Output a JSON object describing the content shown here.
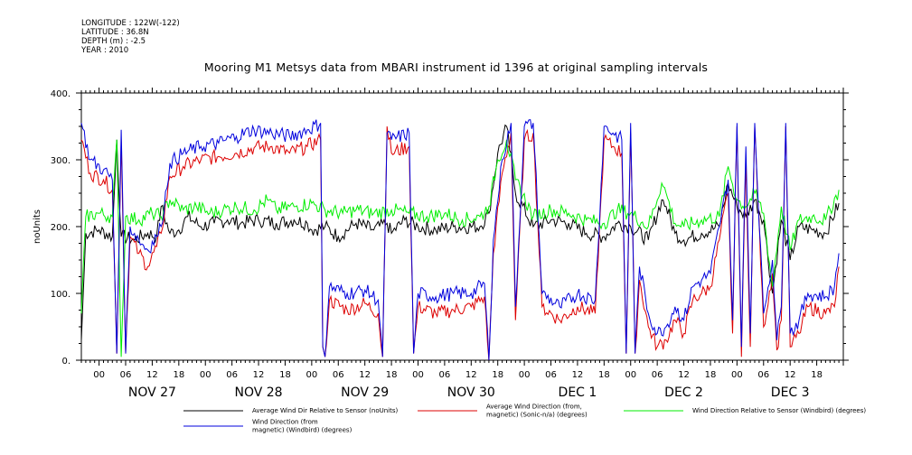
{
  "header": {
    "longitude": "LONGITUDE : 122W(-122)",
    "latitude": "LATITUDE : 36.8N",
    "depth": "DEPTH (m) : -2.5",
    "year": "YEAR : 2010"
  },
  "chart_data": {
    "type": "line",
    "title": "Mooring M1 Metsys data from MBARI instrument id 1396 at original sampling intervals",
    "ylabel": "noUnits",
    "ylim": [
      0,
      400
    ],
    "yticks": [
      0,
      100,
      200,
      300,
      400
    ],
    "ytick_labels": [
      "0.",
      "100.",
      "200.",
      "300.",
      "400."
    ],
    "xlim_hours": [
      0,
      172
    ],
    "hour_labels": [
      "00",
      "06",
      "12",
      "18",
      "00",
      "06",
      "12",
      "18",
      "00",
      "06",
      "12",
      "18",
      "00",
      "06",
      "12",
      "18",
      "00",
      "06",
      "12",
      "18",
      "00",
      "06",
      "12",
      "18",
      "00",
      "06",
      "12",
      "18"
    ],
    "day_labels": [
      "NOV 27",
      "NOV 28",
      "NOV 29",
      "NOV 30",
      "DEC  1",
      "DEC  2",
      "DEC  3"
    ],
    "grid": false,
    "legend_position": "bottom",
    "series": [
      {
        "name": "Average Wind Dir Relative to Sensor (noUnits)",
        "color": "#000000",
        "values": [
          [
            0,
            30
          ],
          [
            1,
            190
          ],
          [
            4,
            195
          ],
          [
            7,
            185
          ],
          [
            8,
            330
          ],
          [
            9,
            185
          ],
          [
            12,
            180
          ],
          [
            15,
            190
          ],
          [
            17,
            185
          ],
          [
            18,
            230
          ],
          [
            20,
            190
          ],
          [
            22,
            195
          ],
          [
            24,
            215
          ],
          [
            27,
            200
          ],
          [
            30,
            205
          ],
          [
            33,
            210
          ],
          [
            36,
            205
          ],
          [
            40,
            210
          ],
          [
            44,
            205
          ],
          [
            48,
            210
          ],
          [
            51,
            205
          ],
          [
            52,
            195
          ],
          [
            55,
            200
          ],
          [
            58,
            185
          ],
          [
            62,
            205
          ],
          [
            66,
            195
          ],
          [
            69,
            205
          ],
          [
            70,
            190
          ],
          [
            73,
            210
          ],
          [
            76,
            200
          ],
          [
            80,
            195
          ],
          [
            84,
            200
          ],
          [
            90,
            200
          ],
          [
            92,
            220
          ],
          [
            94,
            310
          ],
          [
            96,
            350
          ],
          [
            98,
            250
          ],
          [
            102,
            200
          ],
          [
            106,
            210
          ],
          [
            110,
            205
          ],
          [
            114,
            190
          ],
          [
            118,
            185
          ],
          [
            121,
            205
          ],
          [
            124,
            200
          ],
          [
            128,
            180
          ],
          [
            131,
            240
          ],
          [
            132,
            230
          ],
          [
            134,
            190
          ],
          [
            136,
            180
          ],
          [
            140,
            190
          ],
          [
            144,
            200
          ],
          [
            146,
            265
          ],
          [
            148,
            230
          ],
          [
            150,
            215
          ],
          [
            152,
            240
          ],
          [
            154,
            210
          ],
          [
            156,
            100
          ],
          [
            158,
            210
          ],
          [
            160,
            150
          ],
          [
            162,
            200
          ],
          [
            165,
            195
          ],
          [
            168,
            190
          ],
          [
            171,
            235
          ]
        ]
      },
      {
        "name": "Average Wind Direction (from, magnetic) (Sonic-n/a) (degrees)",
        "color": "#dd0000",
        "values": [
          [
            0,
            330
          ],
          [
            2,
            280
          ],
          [
            5,
            270
          ],
          [
            7,
            255
          ],
          [
            8,
            10
          ],
          [
            9,
            330
          ],
          [
            10,
            10
          ],
          [
            11,
            185
          ],
          [
            13,
            160
          ],
          [
            15,
            140
          ],
          [
            17,
            170
          ],
          [
            18,
            190
          ],
          [
            20,
            275
          ],
          [
            23,
            290
          ],
          [
            27,
            300
          ],
          [
            31,
            305
          ],
          [
            35,
            310
          ],
          [
            39,
            318
          ],
          [
            43,
            320
          ],
          [
            47,
            310
          ],
          [
            51,
            320
          ],
          [
            54,
            330
          ],
          [
            54.5,
            20
          ],
          [
            55,
            5
          ],
          [
            56,
            90
          ],
          [
            60,
            75
          ],
          [
            64,
            85
          ],
          [
            67,
            70
          ],
          [
            68,
            5
          ],
          [
            69,
            350
          ],
          [
            70,
            310
          ],
          [
            74,
            320
          ],
          [
            75,
            10
          ],
          [
            76,
            80
          ],
          [
            80,
            70
          ],
          [
            84,
            75
          ],
          [
            88,
            80
          ],
          [
            91,
            95
          ],
          [
            92,
            0
          ],
          [
            93,
            160
          ],
          [
            95,
            280
          ],
          [
            97,
            340
          ],
          [
            98,
            60
          ],
          [
            100,
            330
          ],
          [
            102,
            340
          ],
          [
            104,
            80
          ],
          [
            108,
            60
          ],
          [
            112,
            80
          ],
          [
            116,
            70
          ],
          [
            118,
            330
          ],
          [
            120,
            320
          ],
          [
            122,
            310
          ],
          [
            123,
            10
          ],
          [
            124,
            340
          ],
          [
            125,
            10
          ],
          [
            126,
            120
          ],
          [
            128,
            50
          ],
          [
            130,
            20
          ],
          [
            132,
            30
          ],
          [
            134,
            60
          ],
          [
            136,
            40
          ],
          [
            138,
            90
          ],
          [
            140,
            100
          ],
          [
            142,
            110
          ],
          [
            144,
            180
          ],
          [
            146,
            250
          ],
          [
            147,
            40
          ],
          [
            148,
            350
          ],
          [
            149,
            5
          ],
          [
            150,
            300
          ],
          [
            151,
            20
          ],
          [
            152,
            350
          ],
          [
            154,
            50
          ],
          [
            156,
            130
          ],
          [
            157,
            15
          ],
          [
            158,
            60
          ],
          [
            159,
            350
          ],
          [
            160,
            20
          ],
          [
            162,
            40
          ],
          [
            164,
            80
          ],
          [
            168,
            70
          ],
          [
            170,
            80
          ],
          [
            171,
            140
          ]
        ]
      },
      {
        "name": "Wind Direction Relative to Sensor (Windbird) (degrees)",
        "color": "#00ee00",
        "values": [
          [
            0,
            70
          ],
          [
            1,
            215
          ],
          [
            4,
            220
          ],
          [
            7,
            215
          ],
          [
            8,
            330
          ],
          [
            9,
            5
          ],
          [
            10,
            215
          ],
          [
            13,
            210
          ],
          [
            16,
            220
          ],
          [
            18,
            215
          ],
          [
            20,
            240
          ],
          [
            23,
            225
          ],
          [
            26,
            230
          ],
          [
            29,
            220
          ],
          [
            32,
            225
          ],
          [
            35,
            230
          ],
          [
            39,
            225
          ],
          [
            42,
            240
          ],
          [
            44,
            225
          ],
          [
            48,
            230
          ],
          [
            52,
            235
          ],
          [
            55,
            225
          ],
          [
            59,
            220
          ],
          [
            62,
            225
          ],
          [
            66,
            220
          ],
          [
            70,
            225
          ],
          [
            74,
            220
          ],
          [
            78,
            215
          ],
          [
            82,
            220
          ],
          [
            86,
            210
          ],
          [
            90,
            215
          ],
          [
            92,
            230
          ],
          [
            94,
            300
          ],
          [
            96,
            330
          ],
          [
            98,
            270
          ],
          [
            102,
            215
          ],
          [
            106,
            225
          ],
          [
            110,
            220
          ],
          [
            114,
            210
          ],
          [
            118,
            205
          ],
          [
            121,
            225
          ],
          [
            124,
            220
          ],
          [
            128,
            200
          ],
          [
            131,
            265
          ],
          [
            132,
            250
          ],
          [
            134,
            205
          ],
          [
            136,
            200
          ],
          [
            140,
            210
          ],
          [
            144,
            215
          ],
          [
            146,
            290
          ],
          [
            148,
            240
          ],
          [
            150,
            230
          ],
          [
            152,
            250
          ],
          [
            154,
            220
          ],
          [
            156,
            110
          ],
          [
            158,
            230
          ],
          [
            160,
            165
          ],
          [
            162,
            210
          ],
          [
            165,
            215
          ],
          [
            168,
            210
          ],
          [
            171,
            255
          ]
        ]
      },
      {
        "name": "Wind Direction (from, magnetic) (Windbird) (degrees)",
        "color": "#0000dd",
        "values": [
          [
            0,
            355
          ],
          [
            2,
            300
          ],
          [
            5,
            285
          ],
          [
            7,
            270
          ],
          [
            8,
            10
          ],
          [
            9,
            345
          ],
          [
            10,
            10
          ],
          [
            11,
            200
          ],
          [
            13,
            180
          ],
          [
            15,
            165
          ],
          [
            17,
            185
          ],
          [
            18,
            200
          ],
          [
            20,
            295
          ],
          [
            23,
            310
          ],
          [
            27,
            320
          ],
          [
            31,
            325
          ],
          [
            35,
            335
          ],
          [
            39,
            345
          ],
          [
            43,
            340
          ],
          [
            47,
            335
          ],
          [
            51,
            345
          ],
          [
            54,
            355
          ],
          [
            54.5,
            20
          ],
          [
            55,
            5
          ],
          [
            56,
            110
          ],
          [
            60,
            100
          ],
          [
            64,
            105
          ],
          [
            67,
            90
          ],
          [
            68,
            5
          ],
          [
            69,
            340
          ],
          [
            70,
            330
          ],
          [
            74,
            340
          ],
          [
            75,
            10
          ],
          [
            76,
            100
          ],
          [
            80,
            95
          ],
          [
            84,
            100
          ],
          [
            88,
            100
          ],
          [
            91,
            115
          ],
          [
            92,
            0
          ],
          [
            93,
            180
          ],
          [
            95,
            300
          ],
          [
            97,
            355
          ],
          [
            98,
            80
          ],
          [
            100,
            350
          ],
          [
            102,
            355
          ],
          [
            104,
            100
          ],
          [
            108,
            80
          ],
          [
            112,
            100
          ],
          [
            116,
            90
          ],
          [
            118,
            350
          ],
          [
            120,
            340
          ],
          [
            122,
            330
          ],
          [
            123,
            10
          ],
          [
            124,
            355
          ],
          [
            125,
            10
          ],
          [
            126,
            140
          ],
          [
            128,
            70
          ],
          [
            130,
            40
          ],
          [
            132,
            50
          ],
          [
            134,
            80
          ],
          [
            136,
            60
          ],
          [
            138,
            110
          ],
          [
            140,
            120
          ],
          [
            142,
            130
          ],
          [
            144,
            200
          ],
          [
            146,
            270
          ],
          [
            147,
            60
          ],
          [
            148,
            355
          ],
          [
            149,
            20
          ],
          [
            150,
            320
          ],
          [
            151,
            40
          ],
          [
            152,
            355
          ],
          [
            154,
            70
          ],
          [
            156,
            150
          ],
          [
            157,
            30
          ],
          [
            158,
            80
          ],
          [
            159,
            355
          ],
          [
            160,
            40
          ],
          [
            162,
            60
          ],
          [
            164,
            100
          ],
          [
            168,
            95
          ],
          [
            170,
            110
          ],
          [
            171,
            160
          ]
        ]
      }
    ],
    "legend": [
      {
        "label_lines": [
          "Average Wind Dir Relative to Sensor (noUnits)"
        ],
        "color": "#000000"
      },
      {
        "label_lines": [
          "Average Wind Direction (from,",
          "magnetic) (Sonic-n/a) (degrees)"
        ],
        "color": "#dd0000"
      },
      {
        "label_lines": [
          "Wind Direction Relative to Sensor (Windbird) (degrees)"
        ],
        "color": "#00ee00"
      },
      {
        "label_lines": [
          "Wind Direction (from",
          "magnetic) (Windbird) (degrees)"
        ],
        "color": "#0000dd"
      }
    ]
  }
}
